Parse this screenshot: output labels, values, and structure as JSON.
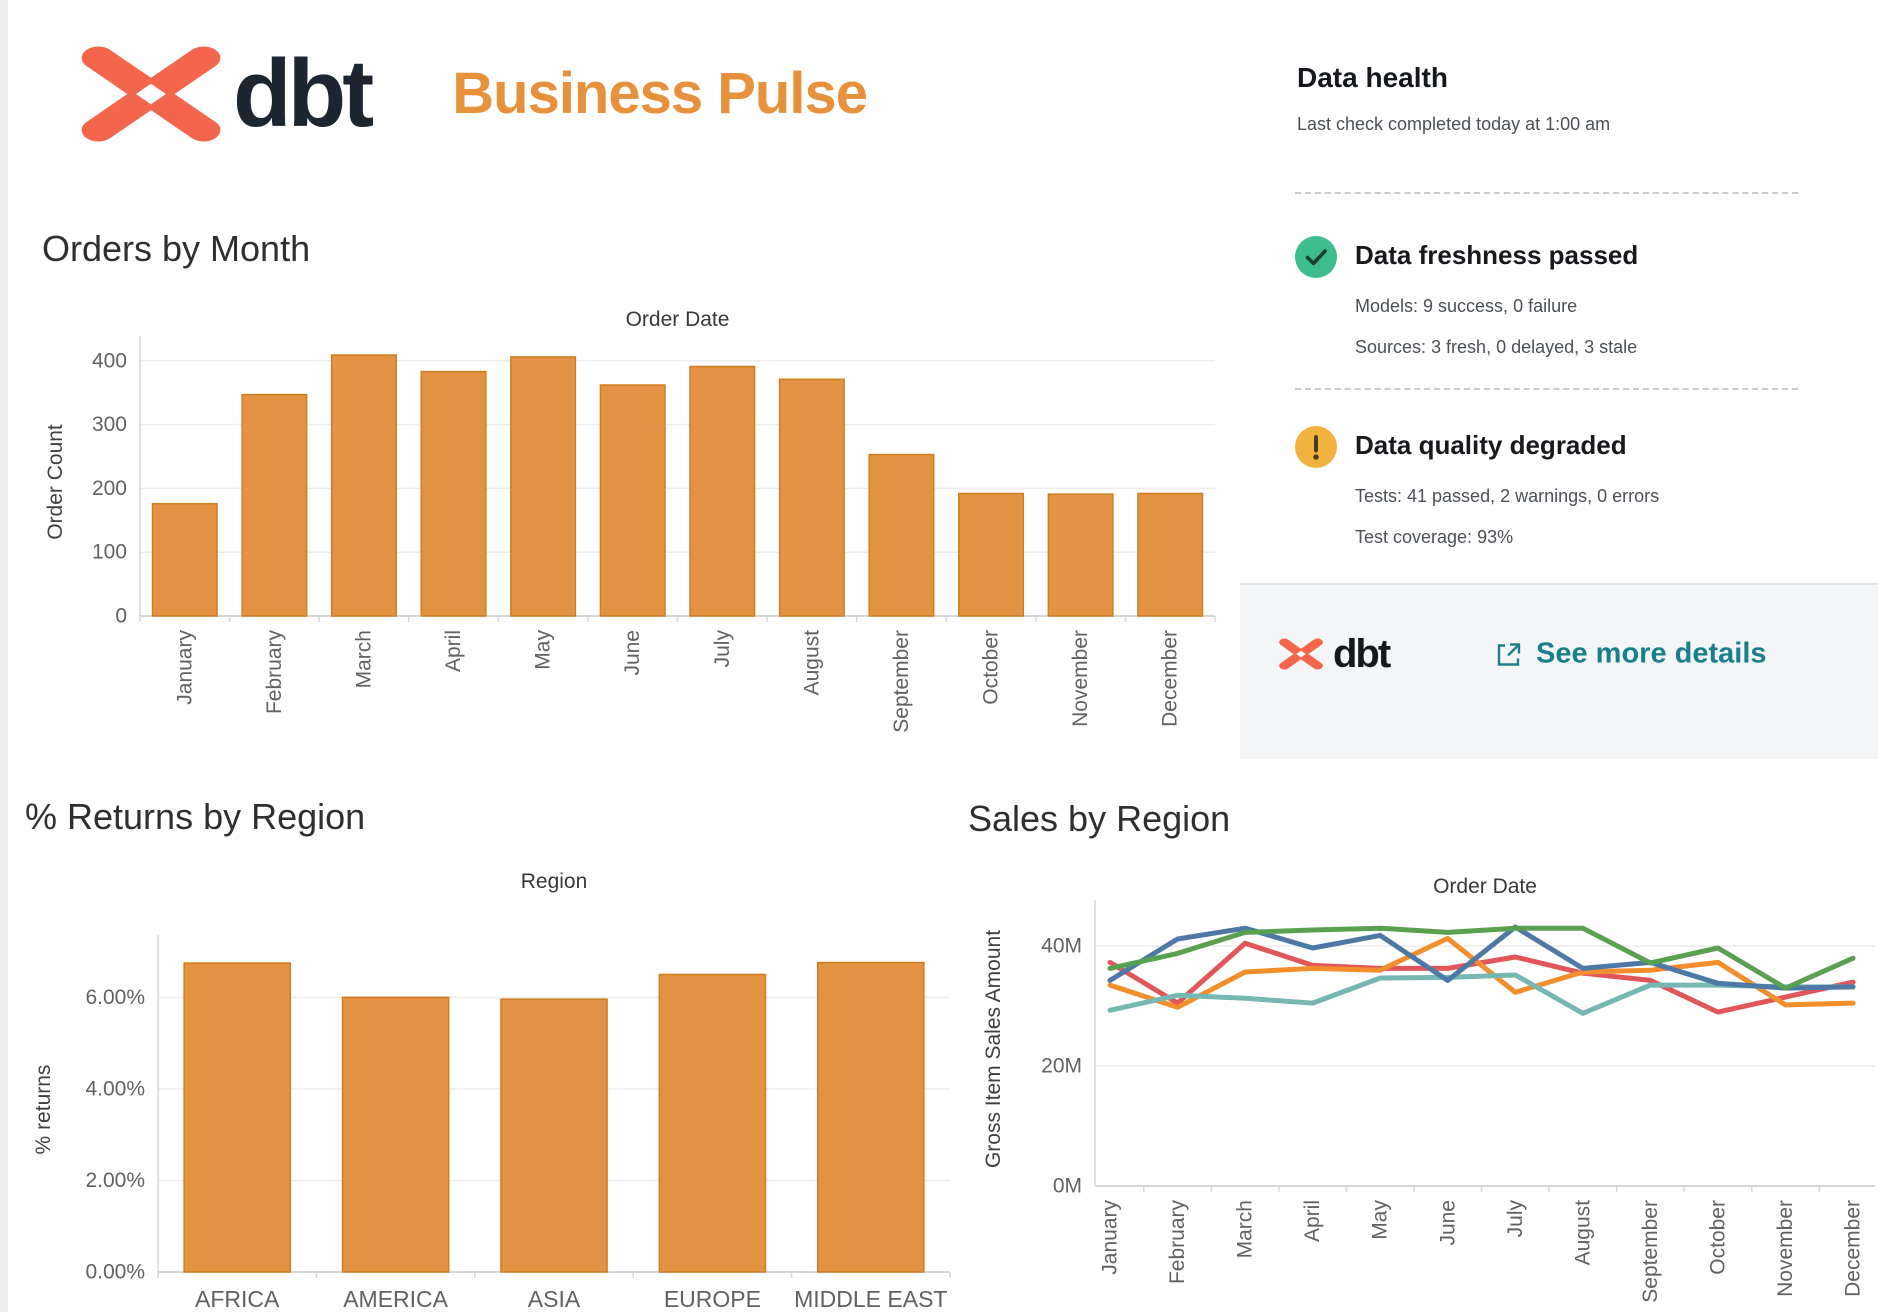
{
  "header": {
    "brand": "dbt",
    "title": "Business Pulse"
  },
  "data_health": {
    "title": "Data health",
    "subtitle": "Last check completed today at 1:00 am",
    "freshness": {
      "icon": "check-circle",
      "title": "Data freshness passed",
      "lines": [
        "Models: 9 success, 0 failure",
        "Sources: 3 fresh, 0 delayed, 3 stale"
      ]
    },
    "quality": {
      "icon": "warning-circle",
      "title": "Data quality degraded",
      "lines": [
        "Tests: 41 passed, 2 warnings, 0 errors",
        "Test coverage: 93%"
      ]
    },
    "footer": {
      "brand": "dbt",
      "link": "See more details"
    }
  },
  "colors": {
    "brand_orange": "#f4664c",
    "brand_dark": "#1d2630",
    "title_orange": "#e8913c",
    "bar_fill": "#e49243",
    "bar_stroke": "#d07d20",
    "link_teal": "#1a7f8d",
    "success_green": "#3dbd8d",
    "warning_yellow": "#f1b33e",
    "grid_gray": "#ececec"
  },
  "chart_data": [
    {
      "type": "bar",
      "title": "Orders by Month",
      "axis_title": "Order Date",
      "xlabel": "Order Date",
      "ylabel": "Order Count",
      "categories": [
        "January",
        "February",
        "March",
        "April",
        "May",
        "June",
        "July",
        "August",
        "September",
        "October",
        "November",
        "December"
      ],
      "values": [
        176,
        347,
        409,
        383,
        406,
        362,
        391,
        371,
        253,
        192,
        191,
        192
      ],
      "ylim": [
        0,
        420
      ],
      "yticks": [
        0,
        100,
        200,
        300,
        400
      ],
      "tick_format": "plain",
      "grid": true,
      "legend": "none"
    },
    {
      "type": "bar",
      "title": "% Returns by Region",
      "axis_title": "Region",
      "xlabel": "Region",
      "ylabel": "% returns",
      "categories": [
        "AFRICA",
        "AMERICA",
        "ASIA",
        "EUROPE",
        "MIDDLE EAST"
      ],
      "values": [
        6.75,
        6.0,
        5.96,
        6.5,
        6.76
      ],
      "ylim": [
        0,
        7.1
      ],
      "yticks": [
        0,
        2,
        4,
        6
      ],
      "tick_format": "percent2",
      "grid": true,
      "legend": "none"
    },
    {
      "type": "line",
      "title": "Sales by Region",
      "axis_title": "Order Date",
      "xlabel": "Order Date",
      "ylabel": "Gross Item Sales Amount",
      "x": [
        "January",
        "February",
        "March",
        "April",
        "May",
        "June",
        "July",
        "August",
        "September",
        "October",
        "November",
        "December"
      ],
      "series": [
        {
          "name": "series-red",
          "color": "#e15759",
          "values": [
            37.3,
            30.5,
            40.5,
            36.8,
            36.3,
            36.3,
            38.2,
            35.5,
            34.3,
            29.0,
            31.5,
            34.0
          ]
        },
        {
          "name": "series-orange",
          "color": "#f28e2b",
          "values": [
            33.5,
            29.8,
            35.7,
            36.3,
            36.0,
            41.3,
            32.3,
            35.7,
            36.0,
            37.3,
            30.2,
            30.5
          ]
        },
        {
          "name": "series-teal",
          "color": "#76b7b2",
          "values": [
            29.3,
            31.8,
            31.3,
            30.5,
            34.7,
            34.8,
            35.2,
            28.8,
            33.5,
            33.5,
            33.2,
            33.2
          ]
        },
        {
          "name": "series-blue",
          "color": "#4e79a7",
          "values": [
            34.3,
            41.2,
            43.0,
            39.7,
            41.8,
            34.3,
            43.2,
            36.3,
            37.3,
            33.8,
            33.0,
            33.2
          ]
        },
        {
          "name": "series-green",
          "color": "#59a14f",
          "values": [
            36.3,
            38.8,
            42.3,
            42.7,
            43.0,
            42.3,
            43.0,
            43.0,
            37.2,
            39.7,
            33.0,
            38.0
          ]
        }
      ],
      "ylim": [
        0,
        45.7
      ],
      "yticks": [
        0,
        20,
        40
      ],
      "tick_format": "M",
      "grid": true,
      "legend": "none"
    }
  ]
}
